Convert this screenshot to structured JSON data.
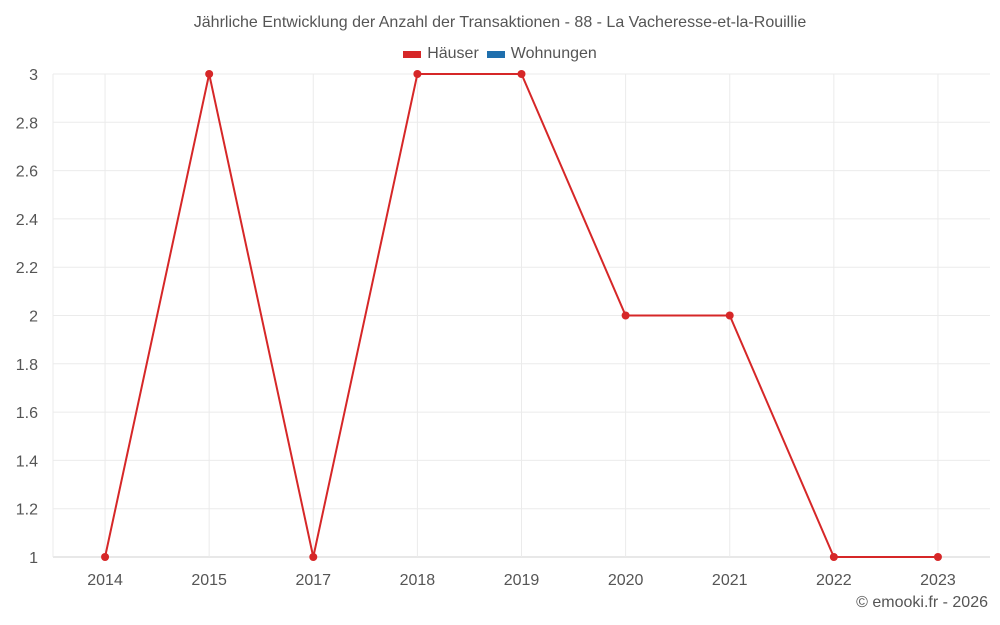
{
  "chart_data": {
    "type": "line",
    "title": "Jährliche Entwicklung der Anzahl der Transaktionen - 88 - La Vacheresse-et-la-Rouillie",
    "categories": [
      "2014",
      "2015",
      "2017",
      "2018",
      "2019",
      "2020",
      "2021",
      "2022",
      "2023"
    ],
    "series": [
      {
        "name": "Häuser",
        "color": "#d62728",
        "values": [
          1,
          3,
          1,
          3,
          3,
          2,
          2,
          1,
          1
        ]
      },
      {
        "name": "Wohnungen",
        "color": "#1f6fad",
        "values": []
      }
    ],
    "xlabel": "",
    "ylabel": "",
    "ylim": [
      1,
      3
    ],
    "yticks": [
      "1",
      "1.2",
      "1.4",
      "1.6",
      "1.8",
      "2",
      "2.2",
      "2.4",
      "2.6",
      "2.8",
      "3"
    ],
    "grid": true,
    "legend_position": "top"
  },
  "legend": [
    {
      "label": "Häuser",
      "color": "#d62728"
    },
    {
      "label": "Wohnungen",
      "color": "#1f6fad"
    }
  ],
  "credit": "© emooki.fr - 2026"
}
